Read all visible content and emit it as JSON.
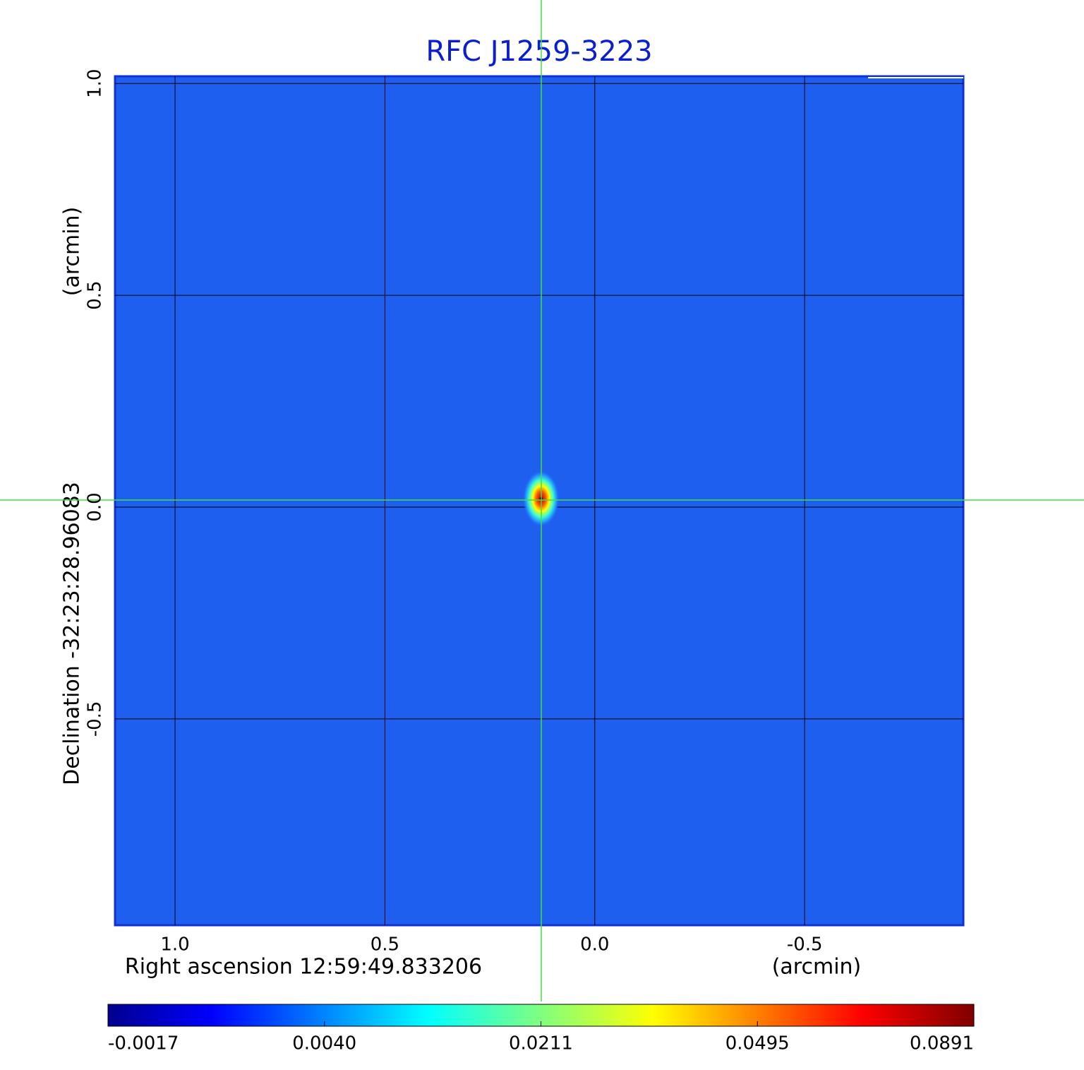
{
  "chart_data": {
    "type": "image",
    "title": "RFC J1259-3223",
    "xlabel": "Right ascension  12:59:49.833206",
    "xunit": "(arcmin)",
    "ylabel": "Declination  -32:23:28.96083",
    "yunit": "(arcmin)",
    "xlim": [
      1.143,
      -0.878
    ],
    "ylim": [
      -0.987,
      1.017
    ],
    "xticks": [
      {
        "value": 1.0,
        "label": "1.0"
      },
      {
        "value": 0.5,
        "label": "0.5"
      },
      {
        "value": 0.0,
        "label": "0.0"
      },
      {
        "value": -0.5,
        "label": "-0.5"
      }
    ],
    "yticks": [
      {
        "value": 1.0,
        "label": "1.0"
      },
      {
        "value": 0.5,
        "label": "0.5"
      },
      {
        "value": 0.0,
        "label": "0.0"
      },
      {
        "value": -0.5,
        "label": "-0.5"
      }
    ],
    "grid": true,
    "colormap": "jet",
    "colorbar_ticks": [
      -0.0017,
      {
        "value": 0.004,
        "label": "0.0040"
      },
      0.0211,
      0.0495,
      0.0891
    ],
    "source": {
      "x": 0.128,
      "y": 0.02,
      "peak": 0.0891
    }
  }
}
